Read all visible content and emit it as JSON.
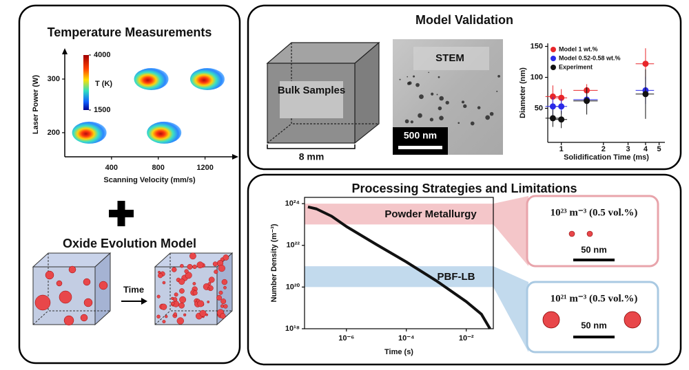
{
  "panels": {
    "temperature": {
      "title": "Temperature Measurements"
    },
    "oxide_model": {
      "title": "Oxide Evolution Model",
      "arrow_label": "Time"
    },
    "validation": {
      "title": "Model Validation",
      "bulk_label": "Bulk Samples",
      "size_label": "8 mm",
      "stem_label": "STEM",
      "stem_scale": "500 nm"
    },
    "processing": {
      "title": "Processing Strategies and Limitations",
      "callouts": [
        {
          "label": "10²³ m⁻³ (0.5 vol.%)",
          "scale": "50 nm"
        },
        {
          "label": "10²¹ m⁻³ (0.5 vol.%)",
          "scale": "50 nm"
        }
      ]
    }
  },
  "chart_data": [
    {
      "type": "scatter",
      "marker": "thermal-map",
      "xlabel": "Scanning Velocity (mm/s)",
      "ylabel": "Laser Power (W)",
      "x": [
        210,
        850,
        740,
        1220
      ],
      "values": [
        200,
        200,
        300,
        300
      ],
      "xlim": [
        0,
        1450
      ],
      "ylim": [
        155,
        350
      ],
      "xticks": [
        400,
        800,
        1200
      ],
      "yticks": [
        200,
        300
      ],
      "colorbar": {
        "label": "T (K)",
        "range": [
          1500,
          4000
        ],
        "ticks": [
          4000,
          1500
        ]
      }
    },
    {
      "type": "scatter",
      "marker": "errorbar",
      "xscale": "log",
      "xlabel": "Solidification Time (ms)",
      "ylabel": "Diameter (nm)",
      "x": [
        0.87,
        1,
        1.52,
        4
      ],
      "xlim": [
        0.8,
        5.5
      ],
      "ylim": [
        -5,
        155
      ],
      "xticks": [
        1,
        2,
        3,
        4,
        5
      ],
      "yticks": [
        50,
        100,
        150
      ],
      "legend": "upper-left",
      "series": [
        {
          "name": "Model 1 wt.%",
          "color": "#e8262a",
          "values": [
            69,
            67,
            79,
            122
          ],
          "yerr": [
            18,
            14,
            10,
            25
          ],
          "xerr": [
            0.1,
            0.1,
            0.3,
            0.6
          ]
        },
        {
          "name": "Model 0.52-0.58 wt.%",
          "color": "#2a2ae8",
          "values": [
            53,
            53,
            64,
            79
          ],
          "yerr": [
            15,
            12,
            9,
            22
          ],
          "xerr": [
            0.1,
            0.1,
            0.3,
            0.6
          ]
        },
        {
          "name": "Experiment",
          "color": "#111111",
          "values": [
            34,
            32,
            62,
            73
          ],
          "yerr": [
            14,
            14,
            22,
            40
          ],
          "xerr": [
            0.1,
            0.1,
            0.3,
            0.6
          ]
        }
      ]
    },
    {
      "type": "line",
      "xscale": "log",
      "yscale": "log",
      "color": "#111111",
      "xlabel": "Time (s)",
      "ylabel": "Number Density (m⁻³)",
      "x": [
        5.2e-08,
        1e-07,
        3.2e-07,
        1e-06,
        1e-05,
        0.0001,
        0.001,
        0.01,
        0.032,
        0.062
      ],
      "values": [
        7e+23,
        5.6e+23,
        2.5e+23,
        8e+22,
        1.1e+22,
        1.6e+21,
        2e+20,
        2e+19,
        5e+18,
        1e+18
      ],
      "xlim": [
        4e-08,
        0.08
      ],
      "ylim": [
        1e+18,
        2e+24
      ],
      "xticks": [
        {
          "value": 1e-06,
          "label": "10⁻⁶"
        },
        {
          "value": 0.0001,
          "label": "10⁻⁴"
        },
        {
          "value": 0.01,
          "label": "10⁻²"
        }
      ],
      "yticks": [
        {
          "value": 1e+24,
          "label": "10²⁴"
        },
        {
          "value": 1e+22,
          "label": "10²²"
        },
        {
          "value": 1e+20,
          "label": "10²⁰"
        },
        {
          "value": 1e+18,
          "label": "10¹⁸"
        }
      ],
      "bands": [
        {
          "label": "Powder Metallurgy",
          "range": [
            1e+23,
            1e+24
          ],
          "color": "#f2bcc0"
        },
        {
          "label": "PBF-LB",
          "range": [
            1e+20,
            1e+21
          ],
          "color": "#b7d4ea"
        }
      ]
    }
  ]
}
